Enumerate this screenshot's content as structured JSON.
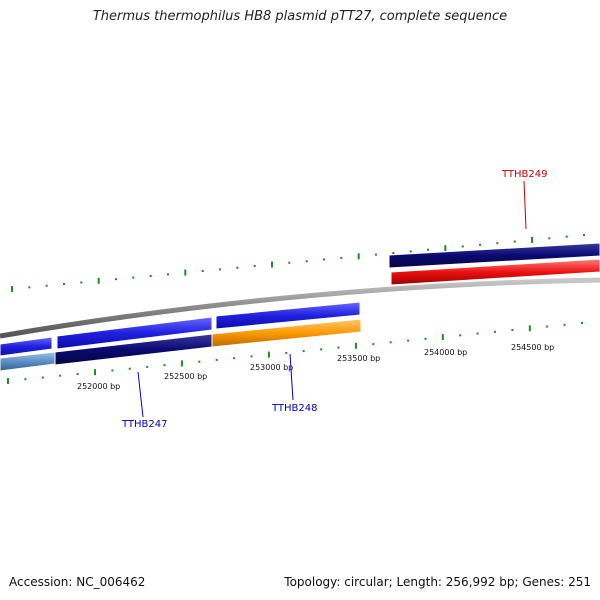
{
  "title": "Thermus thermophilus HB8 plasmid pTT27, complete sequence",
  "footer": {
    "accession": "Accession: NC_006462",
    "summary": "Topology: circular; Length: 256,992 bp; Genes: 251"
  },
  "colors": {
    "backbone": "#888888",
    "tick": "#228b22",
    "gene_blue": "#2020e0",
    "gene_navy": "#0a0a72",
    "gene_orange": "#ff9900",
    "gene_red": "#ee1111",
    "gene_lightblue": "#5b8fc4",
    "label_blue": "#0000cc",
    "label_red": "#cc0000"
  },
  "scale_labels": [
    "252000 bp",
    "252500 bp",
    "253000 bp",
    "253500 bp",
    "254000 bp",
    "254500 bp"
  ],
  "gene_labels": [
    {
      "name": "TTHB247",
      "color": "label_blue"
    },
    {
      "name": "TTHB248",
      "color": "label_blue"
    },
    {
      "name": "TTHB249",
      "color": "label_red"
    }
  ]
}
